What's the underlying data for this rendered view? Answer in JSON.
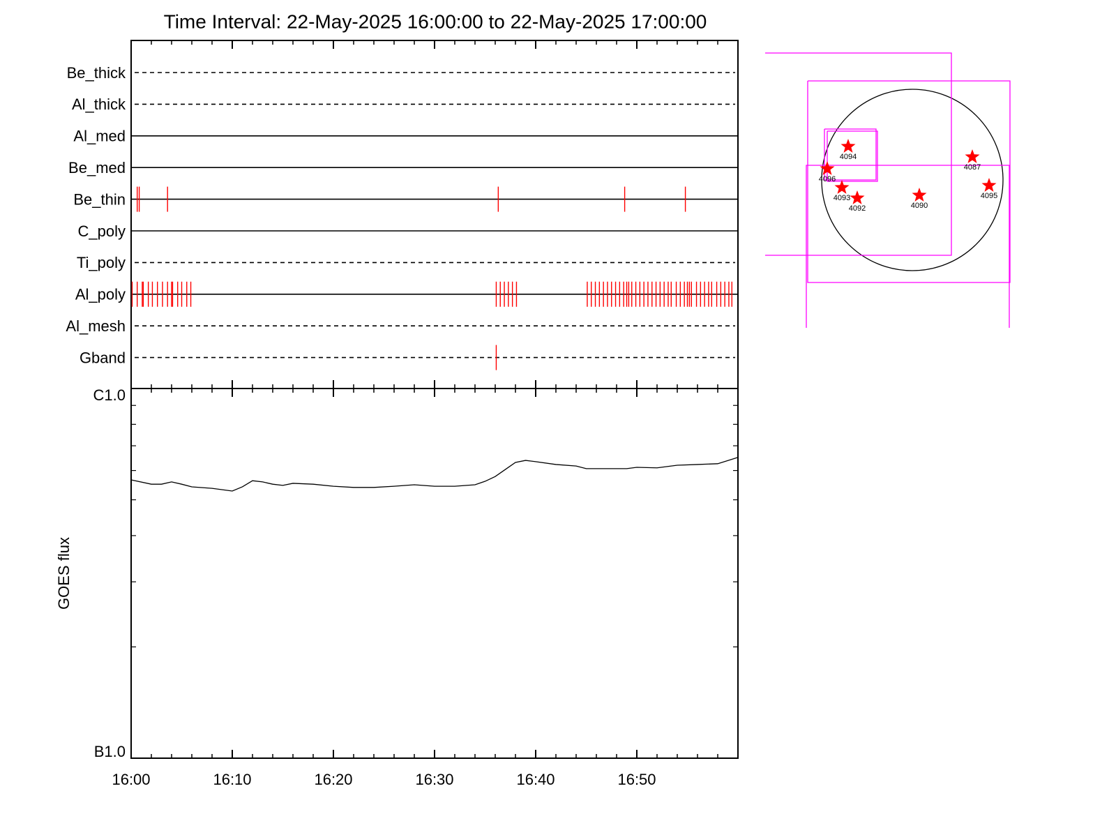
{
  "chart_data": [
    {
      "type": "timeline",
      "title": "Time Interval: 22-May-2025 16:00:00 to 22-May-2025 17:00:00",
      "xlim": [
        0,
        60
      ],
      "xticks": [
        0,
        10,
        20,
        30,
        40,
        50
      ],
      "xminorticks": [
        2,
        4,
        6,
        8,
        12,
        14,
        16,
        18,
        22,
        24,
        26,
        28,
        32,
        34,
        36,
        38,
        42,
        44,
        46,
        48,
        52,
        54,
        56,
        58
      ],
      "event_color": "#ff0000",
      "lanes": [
        {
          "name": "Be_thick",
          "line": "dashed",
          "events": []
        },
        {
          "name": "Al_thick",
          "line": "dashed",
          "events": []
        },
        {
          "name": "Al_med",
          "line": "solid",
          "events": []
        },
        {
          "name": "Be_med",
          "line": "solid",
          "events": []
        },
        {
          "name": "Be_thin",
          "line": "solid",
          "events": [
            0.6,
            0.8,
            3.6,
            36.3,
            48.8,
            54.8
          ]
        },
        {
          "name": "C_poly",
          "line": "solid",
          "events": []
        },
        {
          "name": "Ti_poly",
          "line": "dashed",
          "events": []
        },
        {
          "name": "Al_poly",
          "line": "solid",
          "events": [
            0.1,
            0.6,
            1.1,
            1.2,
            1.7,
            2.1,
            2.6,
            3.1,
            3.6,
            4.0,
            4.1,
            4.6,
            5.0,
            5.5,
            5.9,
            36.1,
            36.5,
            36.9,
            37.3,
            37.7,
            38.1,
            45.1,
            45.5,
            45.9,
            46.3,
            46.7,
            47.1,
            47.5,
            47.9,
            48.3,
            48.7,
            49.0,
            49.2,
            49.5,
            49.9,
            50.3,
            50.7,
            51.1,
            51.5,
            51.9,
            52.3,
            52.7,
            53.1,
            53.4,
            53.9,
            54.3,
            54.7,
            55.0,
            55.2,
            55.4,
            55.9,
            56.3,
            56.7,
            57.1,
            57.4,
            57.9,
            58.3,
            58.7,
            59.1,
            59.4
          ]
        },
        {
          "name": "Al_mesh",
          "line": "dashed",
          "events": []
        },
        {
          "name": "Gband",
          "line": "dashed",
          "events": [
            36.1
          ]
        }
      ]
    },
    {
      "type": "line",
      "ylabel": "GOES flux",
      "log_y": true,
      "color": "#000000",
      "xlim": [
        0,
        60
      ],
      "xticks": [
        {
          "value": 0,
          "label": "16:00"
        },
        {
          "value": 10,
          "label": "16:10"
        },
        {
          "value": 20,
          "label": "16:20"
        },
        {
          "value": 30,
          "label": "16:30"
        },
        {
          "value": 40,
          "label": "16:40"
        },
        {
          "value": 50,
          "label": "16:50"
        }
      ],
      "xminorticks": [
        2,
        4,
        6,
        8,
        12,
        14,
        16,
        18,
        22,
        24,
        26,
        28,
        32,
        34,
        36,
        38,
        42,
        44,
        46,
        48,
        52,
        54,
        56,
        58
      ],
      "ylim": [
        1e-07,
        1e-06
      ],
      "yticks": [
        {
          "value": 1e-06,
          "label": "C1.0"
        },
        {
          "value": 1e-07,
          "label": "B1.0"
        }
      ],
      "yminorticks": [
        2e-07,
        3e-07,
        4e-07,
        5e-07,
        6e-07,
        7e-07,
        8e-07,
        9e-07
      ],
      "x": [
        0,
        2,
        3,
        4,
        5,
        6,
        8,
        10,
        11,
        12,
        13,
        14,
        15,
        16,
        18,
        20,
        22,
        24,
        26,
        28,
        30,
        32,
        34,
        35,
        36,
        37,
        38,
        39,
        40,
        42,
        44,
        45,
        47,
        49,
        50,
        52,
        54,
        56,
        58,
        60
      ],
      "values": [
        5.66e-07,
        5.51e-07,
        5.51e-07,
        5.59e-07,
        5.51e-07,
        5.42e-07,
        5.37e-07,
        5.28e-07,
        5.42e-07,
        5.63e-07,
        5.59e-07,
        5.51e-07,
        5.47e-07,
        5.54e-07,
        5.51e-07,
        5.44e-07,
        5.4e-07,
        5.4e-07,
        5.44e-07,
        5.49e-07,
        5.44e-07,
        5.44e-07,
        5.49e-07,
        5.61e-07,
        5.78e-07,
        6.04e-07,
        6.31e-07,
        6.39e-07,
        6.34e-07,
        6.23e-07,
        6.17e-07,
        6.07e-07,
        6.07e-07,
        6.07e-07,
        6.12e-07,
        6.1e-07,
        6.2e-07,
        6.23e-07,
        6.26e-07,
        6.51e-07
      ]
    }
  ],
  "solar_map": {
    "regions": [
      "4094",
      "4096",
      "4087",
      "4093",
      "4092",
      "4090",
      "4095"
    ]
  }
}
